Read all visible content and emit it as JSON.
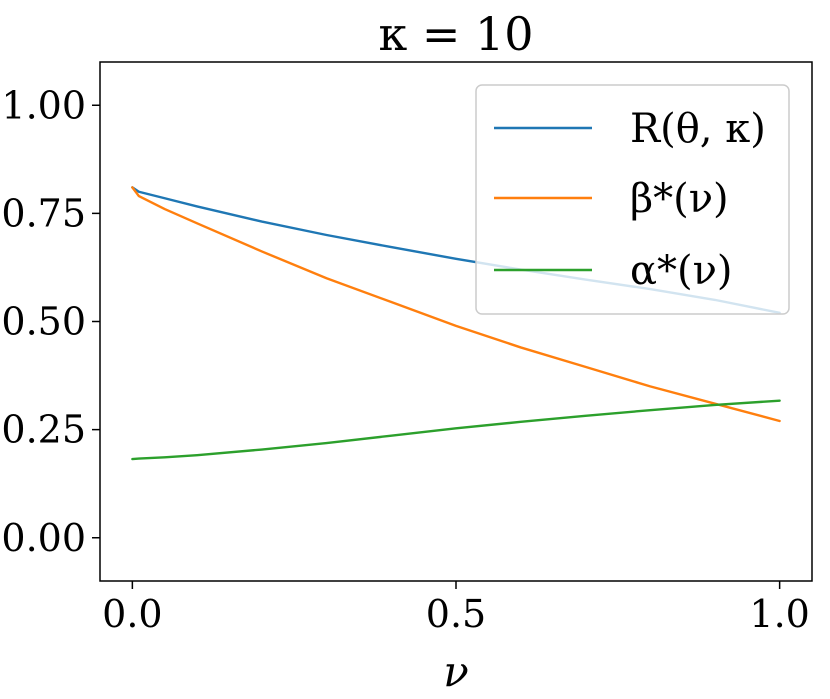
{
  "chart_data": {
    "type": "line",
    "title": "κ = 10",
    "xlabel": "ν",
    "ylabel": "",
    "xlim": [
      -0.05,
      1.05
    ],
    "ylim": [
      -0.1,
      1.1
    ],
    "xticks": [
      0.0,
      0.5,
      1.0
    ],
    "xtick_labels": [
      "0.0",
      "0.5",
      "1.0"
    ],
    "yticks": [
      0.0,
      0.25,
      0.5,
      0.75,
      1.0
    ],
    "ytick_labels": [
      "0.00",
      "0.25",
      "0.50",
      "0.75",
      "1.00"
    ],
    "grid": false,
    "legend_position": "upper-right",
    "x": [
      0.0,
      0.01,
      0.05,
      0.1,
      0.2,
      0.3,
      0.4,
      0.5,
      0.6,
      0.7,
      0.8,
      0.9,
      1.0
    ],
    "series": [
      {
        "name": "R(θ, κ)",
        "color": "#1f77b4",
        "values": [
          0.81,
          0.8,
          0.785,
          0.766,
          0.731,
          0.7,
          0.672,
          0.645,
          0.62,
          0.597,
          0.575,
          0.55,
          0.52
        ]
      },
      {
        "name": "β*(ν)",
        "color": "#ff7f0e",
        "values": [
          0.81,
          0.79,
          0.76,
          0.727,
          0.662,
          0.6,
          0.545,
          0.49,
          0.44,
          0.395,
          0.35,
          0.31,
          0.27
        ]
      },
      {
        "name": "α*(ν)",
        "color": "#2ca02c",
        "values": [
          0.182,
          0.183,
          0.186,
          0.191,
          0.204,
          0.219,
          0.236,
          0.253,
          0.268,
          0.282,
          0.295,
          0.307,
          0.317
        ]
      }
    ]
  }
}
